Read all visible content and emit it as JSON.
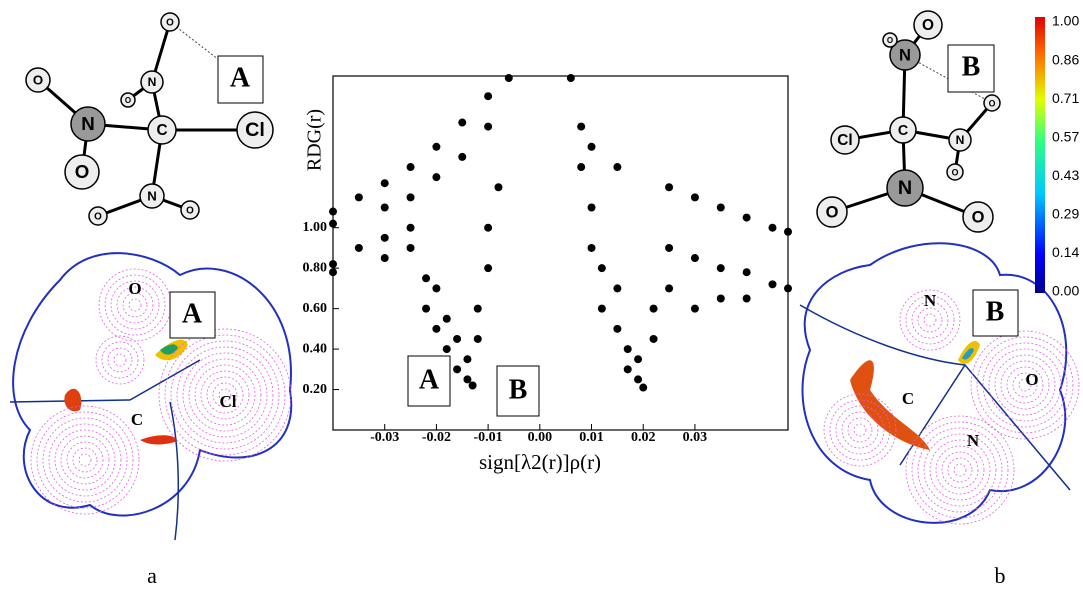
{
  "chart_data": {
    "type": "scatter",
    "x_label": "sign[λ2(r)]ρ(r)",
    "y_label": "RDG(r)",
    "x": [
      -0.04,
      -0.04,
      -0.035,
      -0.03,
      -0.03,
      -0.025,
      -0.025,
      -0.02,
      -0.02,
      -0.015,
      -0.015,
      -0.01,
      -0.01,
      -0.006,
      -0.04,
      -0.04,
      -0.035,
      -0.03,
      -0.03,
      -0.025,
      -0.025,
      -0.022,
      -0.022,
      -0.02,
      -0.02,
      -0.018,
      -0.018,
      -0.016,
      -0.016,
      -0.014,
      -0.014,
      -0.013,
      -0.012,
      -0.012,
      -0.01,
      -0.01,
      -0.008,
      0.006,
      0.008,
      0.008,
      0.01,
      0.01,
      0.01,
      0.012,
      0.012,
      0.015,
      0.015,
      0.015,
      0.017,
      0.017,
      0.019,
      0.019,
      0.02,
      0.022,
      0.022,
      0.025,
      0.025,
      0.025,
      0.03,
      0.03,
      0.03,
      0.035,
      0.035,
      0.035,
      0.04,
      0.04,
      0.04,
      0.045,
      0.045,
      0.048,
      0.048
    ],
    "values": [
      1.08,
      1.02,
      1.15,
      1.22,
      1.1,
      1.3,
      1.15,
      1.4,
      1.25,
      1.52,
      1.35,
      1.65,
      1.5,
      1.74,
      0.82,
      0.78,
      0.9,
      0.95,
      0.85,
      1.0,
      0.9,
      0.75,
      0.6,
      0.7,
      0.5,
      0.55,
      0.4,
      0.45,
      0.3,
      0.35,
      0.25,
      0.22,
      0.6,
      0.45,
      0.8,
      1.0,
      1.2,
      1.74,
      1.5,
      1.3,
      1.4,
      1.1,
      0.9,
      0.8,
      0.6,
      1.3,
      0.7,
      0.5,
      0.4,
      0.3,
      0.25,
      0.35,
      0.21,
      0.45,
      0.6,
      1.2,
      0.9,
      0.7,
      1.15,
      0.85,
      0.6,
      1.1,
      0.8,
      0.65,
      1.05,
      0.78,
      0.65,
      1.0,
      0.72,
      0.98,
      0.7
    ],
    "color": "#000000",
    "xlim": [
      -0.04,
      0.048
    ],
    "xticks": [
      -0.03,
      -0.02,
      -0.01,
      {
        "value": 0,
        "label": "0.00"
      },
      0.01,
      0.02,
      0.03
    ],
    "ylim": [
      0,
      1.75
    ],
    "yticks": [
      {
        "value": 0.2,
        "label": "0.20"
      },
      {
        "value": 0.4,
        "label": "0.40"
      },
      {
        "value": 0.6,
        "label": "0.60"
      },
      {
        "value": 0.8,
        "label": "0.80"
      },
      {
        "value": 1,
        "label": "1.00"
      }
    ],
    "annotations": [
      "A",
      "B"
    ]
  },
  "panel_a": {
    "atoms": [
      "O",
      "N",
      "O",
      "O",
      "N",
      "O",
      "C",
      "Cl",
      "N",
      "O",
      "O"
    ],
    "box_label": "A",
    "map_labels": [
      "O",
      "C",
      "Cl"
    ],
    "map_box_label": "A",
    "caption": "a"
  },
  "panel_b": {
    "atoms": [
      "N",
      "O",
      "O",
      "O",
      "C",
      "N",
      "O",
      "Cl",
      "N",
      "O",
      "O"
    ],
    "box_label": "B",
    "map_labels": [
      "N",
      "C",
      "N",
      "O"
    ],
    "map_box_label": "B",
    "caption": "b"
  },
  "colorbar": {
    "labels": [
      "1.00",
      "0.86",
      "0.71",
      "0.57",
      "0.43",
      "0.29",
      "0.14",
      "0.00"
    ]
  }
}
